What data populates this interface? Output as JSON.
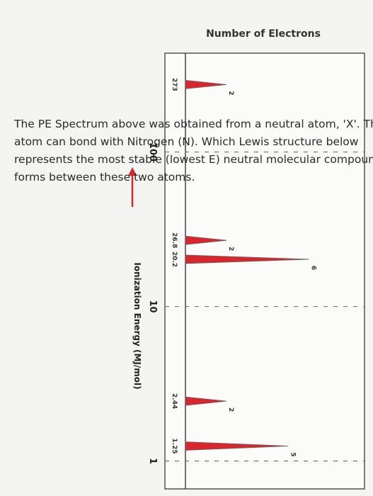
{
  "chart_data": {
    "type": "pes",
    "title": "Number of Electrons",
    "x_label": "Ionization Energy (MJ/mol)",
    "x": [
      273,
      26.8,
      20.2,
      2.44,
      1.25
    ],
    "values": [
      2,
      2,
      6,
      2,
      5
    ],
    "color": "#d9262c",
    "xlim": [
      0.66,
      436
    ],
    "xticks": [
      100,
      10,
      1
    ],
    "x_scale": "log",
    "ylim": [
      0,
      8.7
    ],
    "grid": true
  },
  "question": [
    "The PE Spectrum above was obtained from a neutral atom, 'X'. This",
    "atom can bond with Nitrogen (N). Which Lewis structure below",
    "represents the most stable (lowest E) neutral molecular compound that",
    "forms between these two atoms."
  ]
}
